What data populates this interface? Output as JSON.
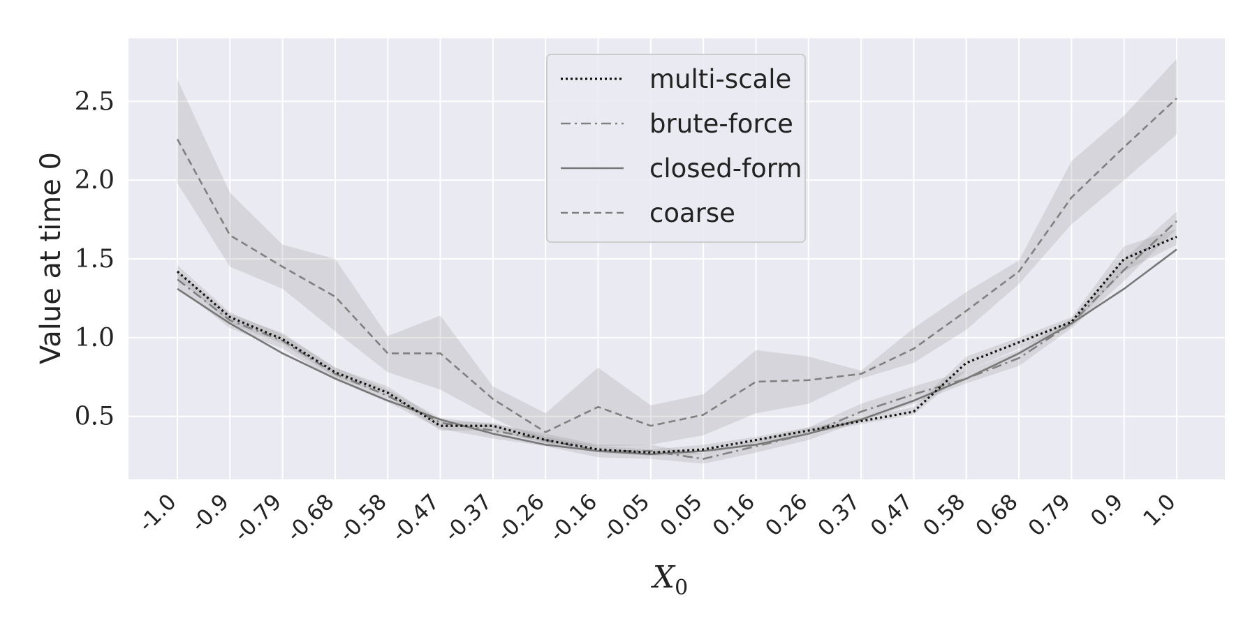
{
  "chart_data": {
    "type": "line",
    "title": "",
    "xlabel": "X",
    "xlabel_subscript": "0",
    "ylabel": "Value at time 0",
    "ylim": [
      0.1,
      2.9
    ],
    "yticks": [
      "0.5",
      "1.0",
      "1.5",
      "2.0",
      "2.5"
    ],
    "ytick_values": [
      0.5,
      1.0,
      1.5,
      2.0,
      2.5
    ],
    "grid": true,
    "legend_position": "top-center",
    "x": [
      "-1.0",
      "-0.9",
      "-0.79",
      "-0.68",
      "-0.58",
      "-0.47",
      "-0.37",
      "-0.26",
      "-0.16",
      "-0.05",
      "0.05",
      "0.16",
      "0.26",
      "0.37",
      "0.47",
      "0.58",
      "0.68",
      "0.79",
      "0.9",
      "1.0"
    ],
    "series": [
      {
        "name": "multi-scale",
        "style": "dotted",
        "color": "#111111",
        "values": [
          1.42,
          1.13,
          0.99,
          0.78,
          0.65,
          0.44,
          0.44,
          0.35,
          0.29,
          0.27,
          0.29,
          0.35,
          0.41,
          0.47,
          0.53,
          0.84,
          0.97,
          1.1,
          1.5,
          1.64
        ],
        "band_low": [
          1.38,
          1.09,
          0.96,
          0.75,
          0.63,
          0.41,
          0.41,
          0.33,
          0.27,
          0.25,
          0.26,
          0.33,
          0.39,
          0.45,
          0.51,
          0.79,
          0.93,
          1.07,
          1.42,
          1.59
        ],
        "band_high": [
          1.46,
          1.16,
          1.02,
          0.81,
          0.69,
          0.47,
          0.46,
          0.37,
          0.31,
          0.29,
          0.32,
          0.37,
          0.43,
          0.49,
          0.56,
          0.88,
          1.0,
          1.13,
          1.58,
          1.69
        ]
      },
      {
        "name": "brute-force",
        "style": "dashdot",
        "color": "#808080",
        "values": [
          1.37,
          1.11,
          0.98,
          0.77,
          0.63,
          0.46,
          0.41,
          0.35,
          0.28,
          0.28,
          0.23,
          0.31,
          0.39,
          0.53,
          0.64,
          0.74,
          0.87,
          1.09,
          1.43,
          1.74
        ],
        "band_low": [
          1.32,
          1.06,
          0.93,
          0.73,
          0.59,
          0.42,
          0.36,
          0.31,
          0.24,
          0.23,
          0.2,
          0.27,
          0.35,
          0.47,
          0.58,
          0.71,
          0.82,
          1.06,
          1.36,
          1.69
        ],
        "band_high": [
          1.42,
          1.15,
          1.03,
          0.81,
          0.67,
          0.49,
          0.45,
          0.39,
          0.32,
          0.32,
          0.26,
          0.35,
          0.43,
          0.58,
          0.69,
          0.79,
          0.92,
          1.12,
          1.5,
          1.8
        ]
      },
      {
        "name": "closed-form",
        "style": "solid",
        "color": "#777777",
        "values": [
          1.31,
          1.09,
          0.9,
          0.74,
          0.6,
          0.48,
          0.39,
          0.32,
          0.28,
          0.26,
          0.28,
          0.32,
          0.39,
          0.48,
          0.6,
          0.74,
          0.9,
          1.09,
          1.31,
          1.56
        ]
      },
      {
        "name": "coarse",
        "style": "dashed",
        "color": "#808080",
        "values": [
          2.26,
          1.65,
          1.45,
          1.26,
          0.9,
          0.9,
          0.61,
          0.4,
          0.56,
          0.44,
          0.51,
          0.72,
          0.73,
          0.77,
          0.93,
          1.17,
          1.42,
          1.89,
          2.21,
          2.52
        ],
        "band_low": [
          1.98,
          1.45,
          1.31,
          1.04,
          0.78,
          0.67,
          0.49,
          0.33,
          0.31,
          0.32,
          0.38,
          0.52,
          0.58,
          0.74,
          0.84,
          1.05,
          1.34,
          1.72,
          2.0,
          2.29
        ],
        "band_high": [
          2.64,
          1.92,
          1.59,
          1.5,
          1.01,
          1.14,
          0.69,
          0.52,
          0.81,
          0.57,
          0.64,
          0.92,
          0.88,
          0.79,
          1.06,
          1.29,
          1.49,
          2.12,
          2.41,
          2.77
        ]
      }
    ]
  },
  "colors": {
    "plot_background": "#eaeaf2",
    "grid": "#ffffff",
    "band_fill": "#808080"
  }
}
